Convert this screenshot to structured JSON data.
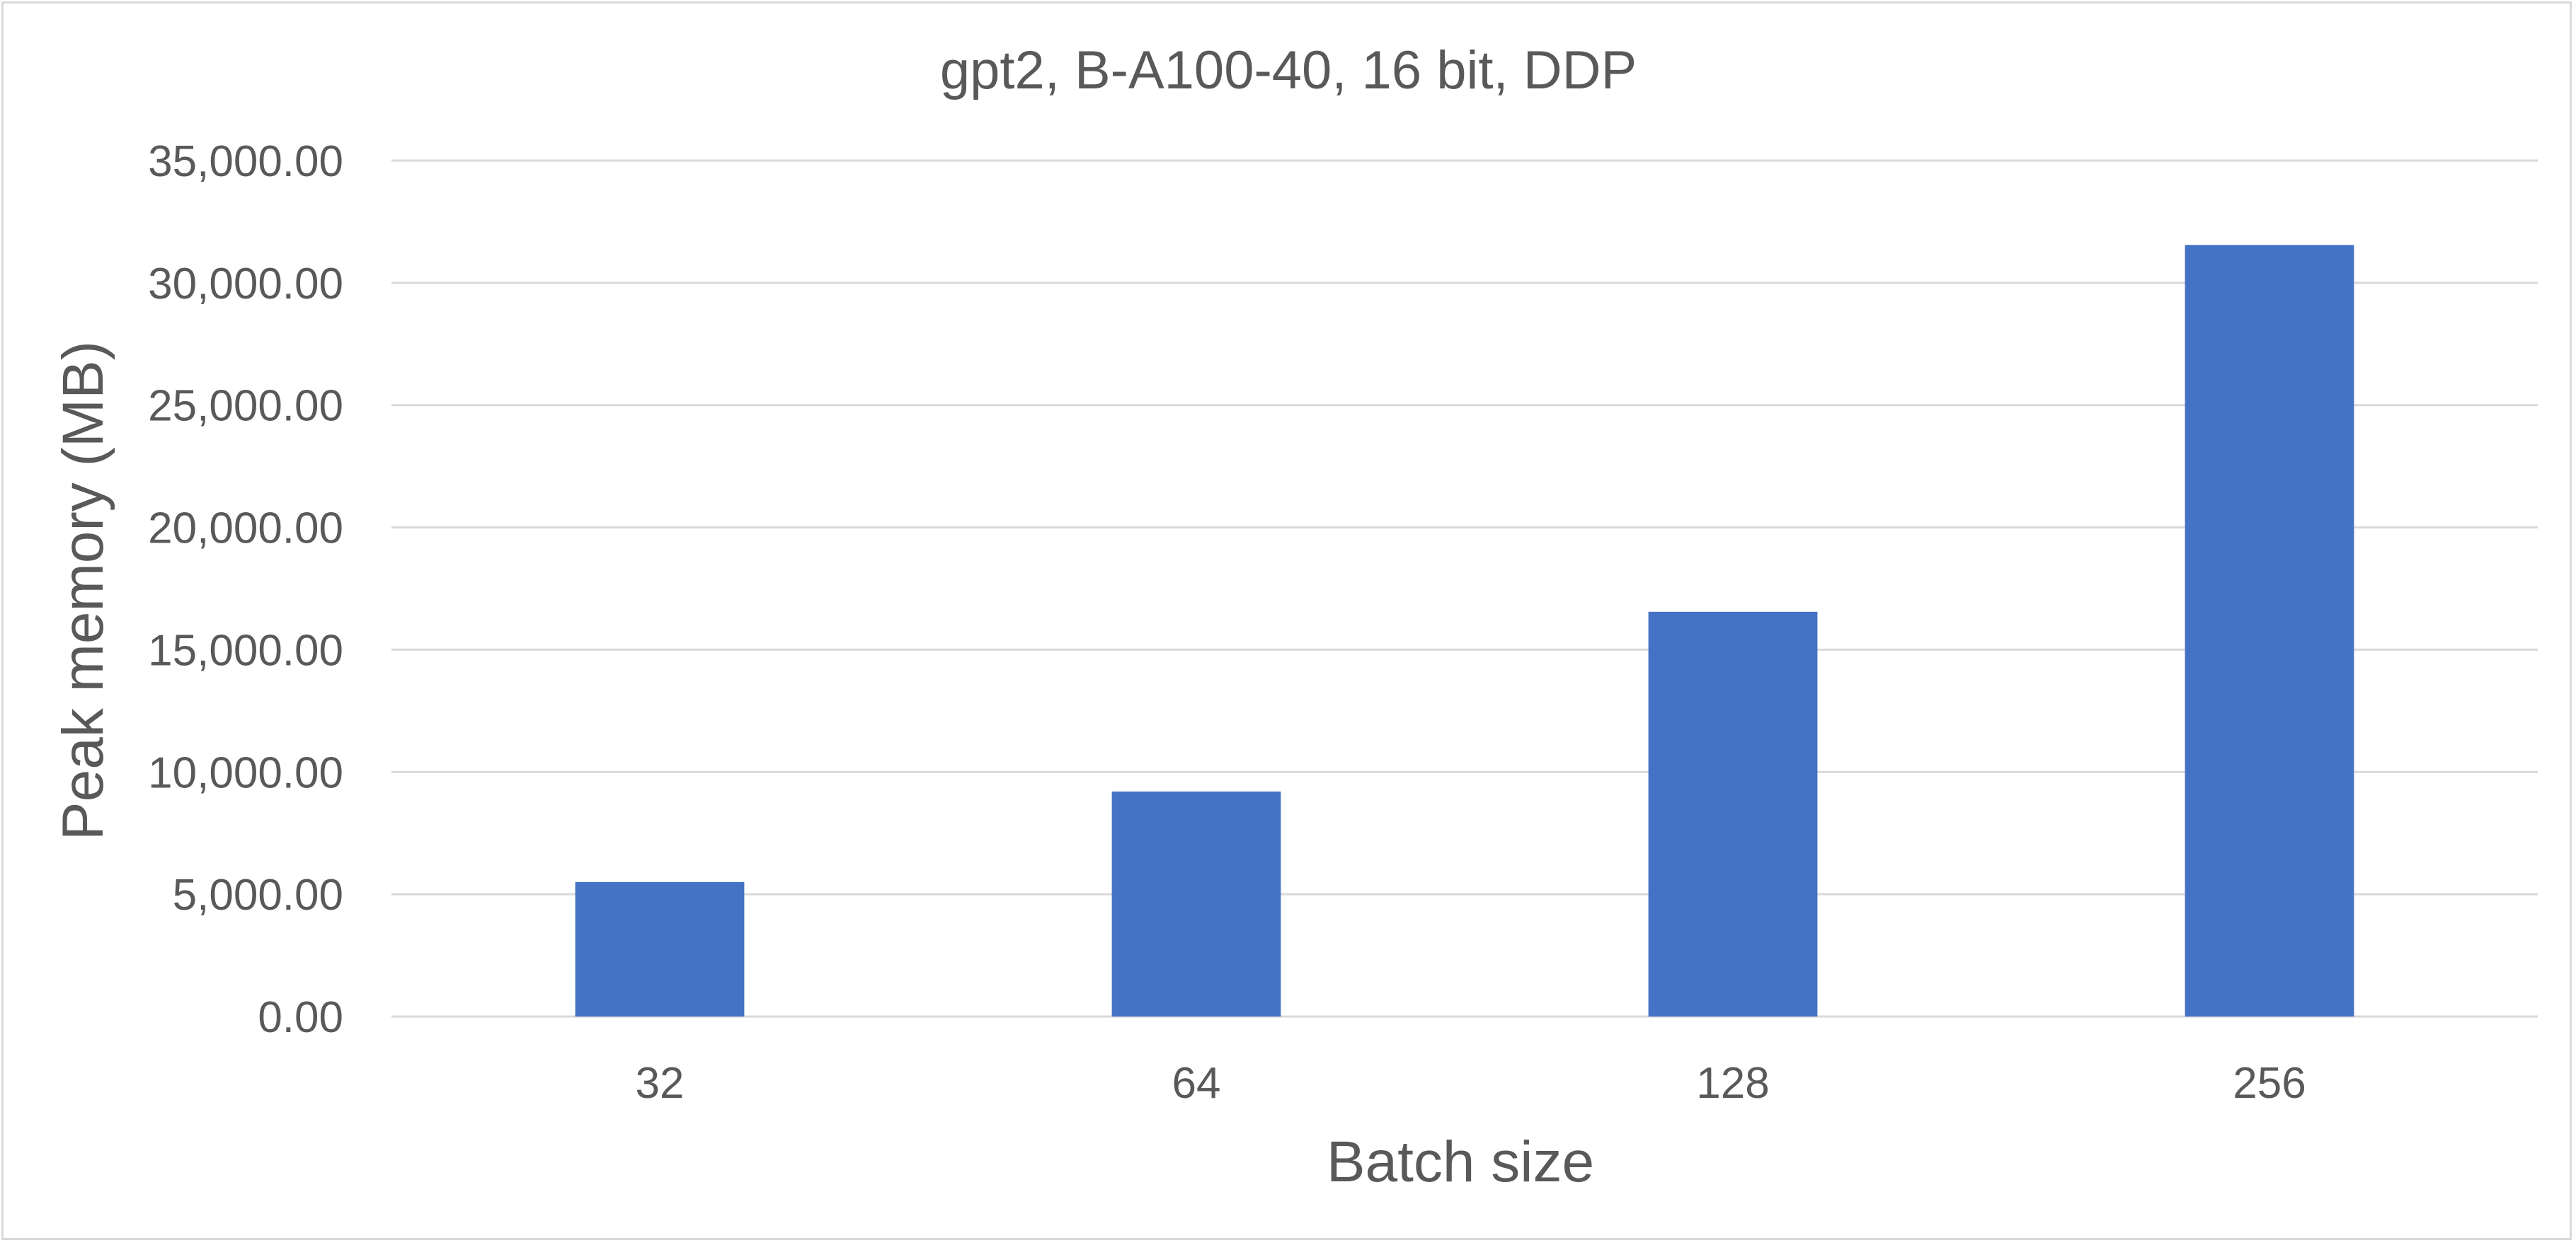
{
  "chart_data": {
    "type": "bar",
    "title": "gpt2, B-A100-40, 16 bit, DDP",
    "xlabel": "Batch size",
    "ylabel": "Peak memory (MB)",
    "categories": [
      "32",
      "64",
      "128",
      "256"
    ],
    "values": [
      5500,
      9200,
      16550,
      31550
    ],
    "ylim": [
      0,
      35000
    ],
    "yticks": [
      0,
      5000,
      10000,
      15000,
      20000,
      25000,
      30000,
      35000
    ],
    "ytick_labels": [
      "0.00",
      "5,000.00",
      "10,000.00",
      "15,000.00",
      "20,000.00",
      "25,000.00",
      "30,000.00",
      "35,000.00"
    ],
    "grid": true,
    "legend": "none",
    "bar_color": "#4472c4"
  }
}
